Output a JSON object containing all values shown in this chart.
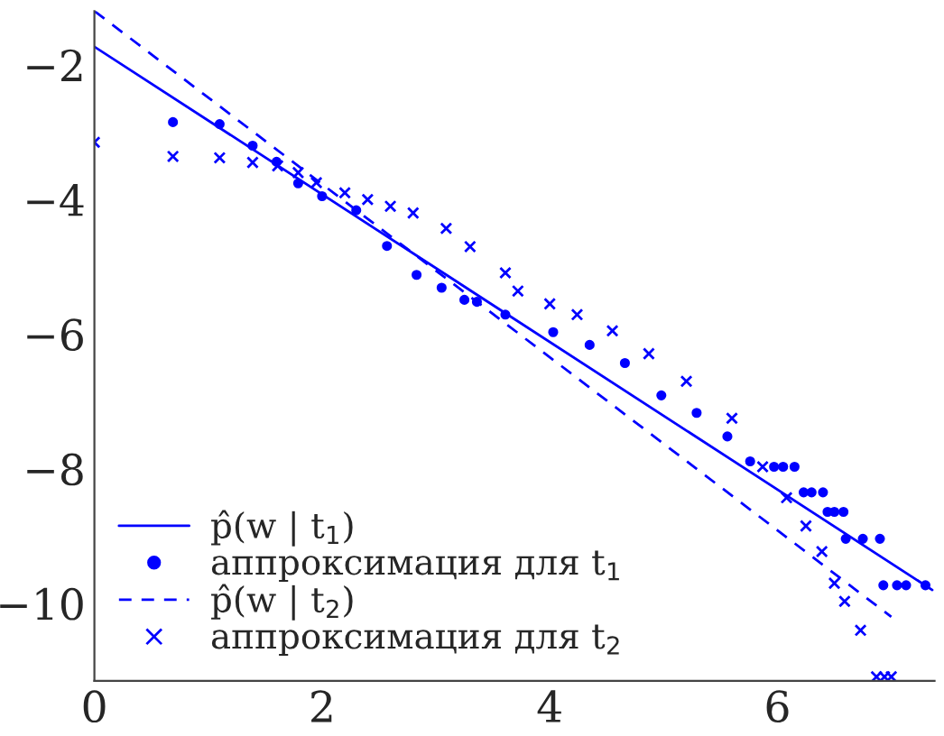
{
  "chart_data": {
    "type": "scatter",
    "xlim": [
      0,
      7.38
    ],
    "ylim": [
      -11.15,
      -1.2
    ],
    "xticks": [
      0,
      2,
      4,
      6
    ],
    "yticks": [
      -10,
      -8,
      -6,
      -4,
      -2
    ],
    "grid": false,
    "legend": "bottom left",
    "series": [
      {
        "name": "p̂(w | t$_{1}$)",
        "type": "line",
        "line_style": "solid",
        "marker": "none",
        "color": "#0000ff",
        "x": [
          0,
          7.36
        ],
        "values": [
          -1.73,
          -9.8
        ]
      },
      {
        "name": "аппроксимация для t$_{1}$",
        "marker": "circle",
        "color": "#0000ff",
        "x": [
          0.69,
          1.1,
          1.39,
          1.6,
          1.79,
          2.0,
          2.3,
          2.57,
          2.83,
          3.05,
          3.25,
          3.36,
          3.61,
          4.03,
          4.35,
          4.66,
          4.98,
          5.29,
          5.56,
          5.76,
          5.97,
          6.05,
          6.15,
          6.23,
          6.3,
          6.4,
          6.44,
          6.5,
          6.58,
          6.6,
          6.75,
          6.9,
          6.93,
          7.05,
          7.13,
          7.3
        ],
        "values": [
          -2.85,
          -2.88,
          -3.2,
          -3.44,
          -3.76,
          -3.95,
          -4.16,
          -4.69,
          -5.12,
          -5.31,
          -5.49,
          -5.52,
          -5.71,
          -5.97,
          -6.16,
          -6.43,
          -6.91,
          -7.17,
          -7.52,
          -7.89,
          -7.97,
          -7.97,
          -7.97,
          -8.35,
          -8.35,
          -8.35,
          -8.64,
          -8.64,
          -8.64,
          -9.04,
          -9.04,
          -9.04,
          -9.73,
          -9.73,
          -9.73,
          -9.73
        ]
      },
      {
        "name": "p̂(w | t$_{2}$)",
        "type": "line",
        "line_style": "dashed",
        "marker": "none",
        "color": "#0000ff",
        "x": [
          0,
          7.0
        ],
        "values": [
          -1.2,
          -10.2
        ]
      },
      {
        "name": "аппроксимация для t$_{2}$",
        "marker": "cross",
        "color": "#0000ff",
        "x": [
          0,
          0.69,
          1.1,
          1.39,
          1.61,
          1.79,
          1.95,
          2.2,
          2.4,
          2.6,
          2.8,
          3.09,
          3.3,
          3.61,
          3.72,
          4.0,
          4.24,
          4.55,
          4.87,
          5.2,
          5.6,
          5.87,
          6.08,
          6.25,
          6.39,
          6.5,
          6.59,
          6.73,
          6.87,
          6.94,
          7.0
        ],
        "values": [
          -3.15,
          -3.36,
          -3.38,
          -3.45,
          -3.5,
          -3.6,
          -3.75,
          -3.9,
          -4.0,
          -4.1,
          -4.2,
          -4.43,
          -4.7,
          -5.09,
          -5.36,
          -5.55,
          -5.71,
          -5.95,
          -6.29,
          -6.7,
          -7.25,
          -7.97,
          -8.43,
          -8.85,
          -9.23,
          -9.7,
          -9.97,
          -10.4,
          -11.09,
          -11.09,
          -11.09
        ]
      }
    ]
  }
}
